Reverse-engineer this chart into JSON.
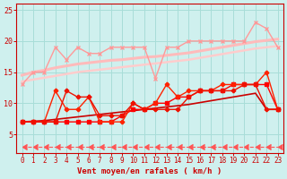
{
  "xlabel": "Vent moyen/en rafales ( km/h )",
  "bg_color": "#cff0ee",
  "grid_color": "#a8ddd8",
  "x": [
    0,
    1,
    2,
    3,
    4,
    5,
    6,
    7,
    8,
    9,
    10,
    11,
    12,
    13,
    14,
    15,
    16,
    17,
    18,
    19,
    20,
    21,
    22,
    23
  ],
  "lines": [
    {
      "y": [
        13,
        15,
        15,
        19,
        17,
        19,
        18,
        18,
        19,
        19,
        19,
        19,
        14,
        19,
        19,
        20,
        20,
        20,
        20,
        20,
        20,
        23,
        22,
        19
      ],
      "color": "#ff9999",
      "lw": 1.0,
      "marker": "x",
      "ms": 3.5,
      "ls": "-"
    },
    {
      "y": [
        14.5,
        15.0,
        15.3,
        15.7,
        16.0,
        16.3,
        16.5,
        16.7,
        16.9,
        17.0,
        17.2,
        17.4,
        17.5,
        17.7,
        17.9,
        18.1,
        18.4,
        18.7,
        19.0,
        19.3,
        19.6,
        19.9,
        20.1,
        20.3
      ],
      "color": "#ffbbbb",
      "lw": 2.2,
      "marker": null,
      "ms": 0,
      "ls": "-"
    },
    {
      "y": [
        13.5,
        13.8,
        14.1,
        14.4,
        14.7,
        15.0,
        15.2,
        15.4,
        15.6,
        15.8,
        16.0,
        16.2,
        16.4,
        16.6,
        16.8,
        17.0,
        17.3,
        17.6,
        17.9,
        18.2,
        18.5,
        18.8,
        19.0,
        19.2
      ],
      "color": "#ffcccc",
      "lw": 1.8,
      "marker": null,
      "ms": 0,
      "ls": "-"
    },
    {
      "y": [
        7,
        7,
        7,
        7,
        7,
        7,
        7,
        7,
        7,
        8,
        9,
        9,
        10,
        10,
        11,
        11,
        12,
        12,
        12,
        13,
        13,
        13,
        13,
        9
      ],
      "color": "#ff0000",
      "lw": 1.0,
      "marker": "s",
      "ms": 2.5,
      "ls": "-"
    },
    {
      "y": [
        7,
        7.1,
        7.2,
        7.4,
        7.6,
        7.8,
        8.0,
        8.2,
        8.4,
        8.6,
        8.8,
        9.0,
        9.2,
        9.4,
        9.6,
        9.8,
        10.1,
        10.4,
        10.7,
        11.0,
        11.3,
        11.6,
        9.0,
        9.0
      ],
      "color": "#cc0000",
      "lw": 1.2,
      "marker": null,
      "ms": 0,
      "ls": "-"
    },
    {
      "y": [
        7,
        7,
        7,
        12,
        9,
        9,
        11,
        7,
        7,
        7,
        10,
        9,
        10,
        13,
        11,
        12,
        12,
        12,
        13,
        13,
        13,
        13,
        15,
        9
      ],
      "color": "#ff2200",
      "lw": 1.0,
      "marker": "P",
      "ms": 3,
      "ls": "-"
    },
    {
      "y": [
        7,
        7,
        7,
        7,
        12,
        11,
        11,
        8,
        8,
        8,
        10,
        9,
        9,
        9,
        9,
        11,
        12,
        12,
        12,
        12,
        13,
        13,
        9,
        9
      ],
      "color": "#ee1100",
      "lw": 1.0,
      "marker": "P",
      "ms": 3,
      "ls": "-"
    },
    {
      "y": [
        3,
        3,
        3,
        3,
        3,
        3,
        3,
        3,
        3,
        3,
        3,
        3,
        3,
        3,
        3,
        3,
        3,
        3,
        3,
        3,
        3,
        3,
        3,
        3
      ],
      "color": "#ff5555",
      "lw": 0.8,
      "marker": 4,
      "ms": 5,
      "ls": "--"
    }
  ],
  "ylim": [
    2,
    26
  ],
  "yticks": [
    5,
    10,
    15,
    20,
    25
  ],
  "xlim": [
    -0.5,
    23.5
  ]
}
